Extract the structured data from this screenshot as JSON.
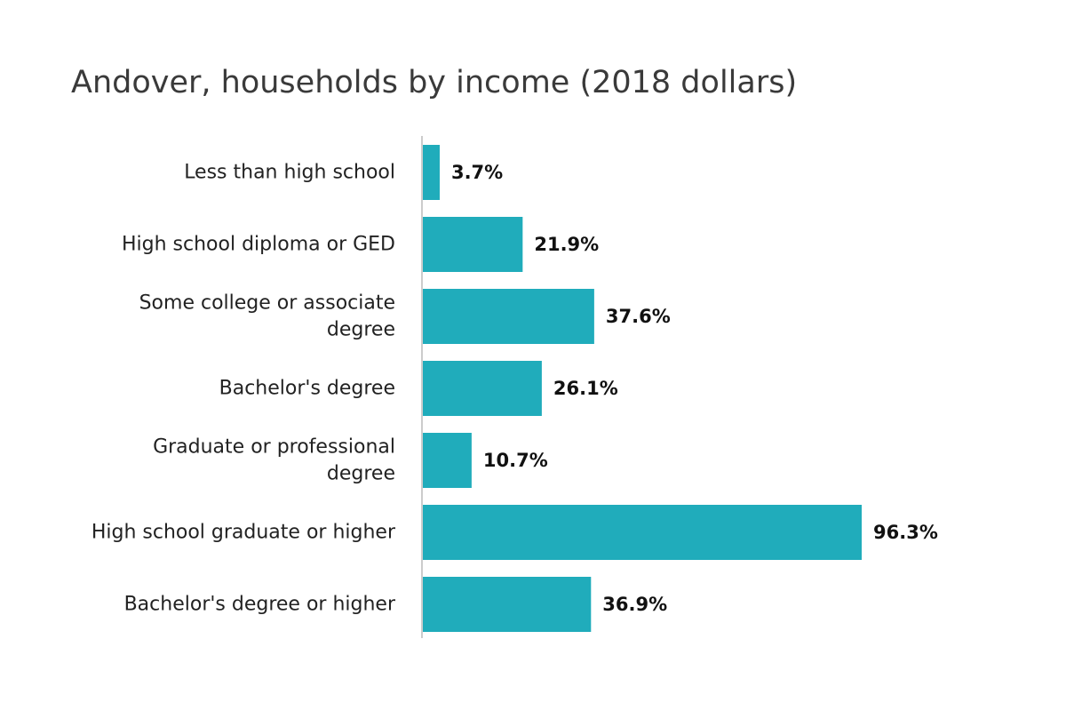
{
  "chart_data": {
    "type": "bar",
    "orientation": "horizontal",
    "title": "Andover, households by income (2018 dollars)",
    "categories": [
      [
        "Less than high school"
      ],
      [
        "High school diploma or GED"
      ],
      [
        "Some college or associate",
        "degree"
      ],
      [
        "Bachelor's degree"
      ],
      [
        "Graduate or professional",
        "degree"
      ],
      [
        "High school graduate or higher"
      ],
      [
        "Bachelor's degree or higher"
      ]
    ],
    "values": [
      3.7,
      21.9,
      37.6,
      26.1,
      10.7,
      96.3,
      36.9
    ],
    "value_labels": [
      "3.7%",
      "21.9%",
      "37.6%",
      "26.1%",
      "10.7%",
      "96.3%",
      "36.9%"
    ],
    "xlim": [
      0,
      100
    ],
    "grid": false,
    "legend": "none",
    "bar_color": "#20acbb",
    "axis_color": "#cccccc"
  }
}
